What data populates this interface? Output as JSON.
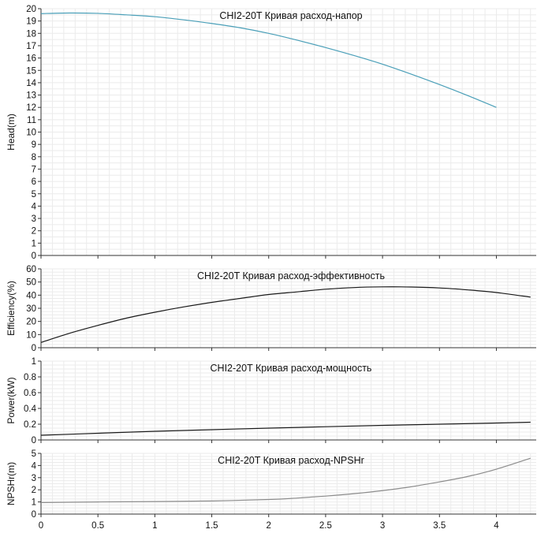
{
  "chart_data": [
    {
      "type": "line",
      "title": "CHI2-20T Кривая расход-напор",
      "xlabel": "",
      "ylabel": "Head(m)",
      "xlim": [
        0,
        4.35
      ],
      "ylim": [
        0,
        20
      ],
      "x_ticks": [
        0,
        0.5,
        1,
        1.5,
        2,
        2.5,
        3,
        3.5,
        4
      ],
      "y_ticks": [
        0,
        1,
        2,
        3,
        4,
        5,
        6,
        7,
        8,
        9,
        10,
        11,
        12,
        13,
        14,
        15,
        16,
        17,
        18,
        19,
        20
      ],
      "grid": true,
      "series": [
        {
          "color": "#4a9fb8",
          "x": [
            0,
            0.25,
            0.5,
            0.75,
            1,
            1.25,
            1.5,
            1.75,
            2,
            2.25,
            2.5,
            2.75,
            3,
            3.25,
            3.5,
            3.75,
            4
          ],
          "y": [
            19.6,
            19.65,
            19.62,
            19.5,
            19.35,
            19.1,
            18.8,
            18.45,
            18.0,
            17.45,
            16.85,
            16.2,
            15.5,
            14.7,
            13.85,
            12.95,
            12.0
          ]
        }
      ]
    },
    {
      "type": "line",
      "title": "CHI2-20T Кривая расход-эффективность",
      "xlabel": "",
      "ylabel": "Efficiency(%)",
      "xlim": [
        0,
        4.35
      ],
      "ylim": [
        0,
        60
      ],
      "x_ticks": [
        0,
        0.5,
        1,
        1.5,
        2,
        2.5,
        3,
        3.5,
        4
      ],
      "y_ticks": [
        0,
        10,
        20,
        30,
        40,
        50,
        60
      ],
      "grid": true,
      "series": [
        {
          "color": "#1a1a1a",
          "x": [
            0,
            0.25,
            0.5,
            0.75,
            1,
            1.25,
            1.5,
            1.75,
            2,
            2.25,
            2.5,
            2.75,
            3,
            3.25,
            3.5,
            3.75,
            4,
            4.3
          ],
          "y": [
            4,
            11,
            17,
            22.5,
            27,
            31,
            34.5,
            37.5,
            40.5,
            42.5,
            44.5,
            45.8,
            46.3,
            46.2,
            45.5,
            44,
            42,
            38.5
          ]
        }
      ]
    },
    {
      "type": "line",
      "title": "CHI2-20T Кривая расход-мощность",
      "xlabel": "",
      "ylabel": "Power(kW)",
      "xlim": [
        0,
        4.35
      ],
      "ylim": [
        0,
        1
      ],
      "x_ticks": [
        0,
        0.5,
        1,
        1.5,
        2,
        2.5,
        3,
        3.5,
        4
      ],
      "y_ticks": [
        0,
        0.2,
        0.4,
        0.6,
        0.8,
        1
      ],
      "grid": true,
      "series": [
        {
          "color": "#1a1a1a",
          "x": [
            0,
            0.5,
            1,
            1.5,
            2,
            2.5,
            3,
            3.5,
            4,
            4.3
          ],
          "y": [
            0.06,
            0.085,
            0.11,
            0.13,
            0.15,
            0.168,
            0.185,
            0.2,
            0.215,
            0.225
          ]
        }
      ]
    },
    {
      "type": "line",
      "title": "CHI2-20T Кривая расход-NPSHr",
      "xlabel": "",
      "ylabel": "NPSHr(m)",
      "xlim": [
        0,
        4.35
      ],
      "ylim": [
        0,
        5
      ],
      "x_ticks": [
        0,
        0.5,
        1,
        1.5,
        2,
        2.5,
        3,
        3.5,
        4
      ],
      "y_ticks": [
        0,
        1,
        2,
        3,
        4,
        5
      ],
      "grid": true,
      "series": [
        {
          "color": "#8c8c8c",
          "x": [
            0,
            0.5,
            1,
            1.5,
            2,
            2.25,
            2.5,
            2.75,
            3,
            3.25,
            3.5,
            3.75,
            4,
            4.3
          ],
          "y": [
            0.95,
            1.0,
            1.03,
            1.08,
            1.2,
            1.32,
            1.48,
            1.68,
            1.93,
            2.25,
            2.65,
            3.1,
            3.7,
            4.6
          ]
        }
      ]
    }
  ]
}
